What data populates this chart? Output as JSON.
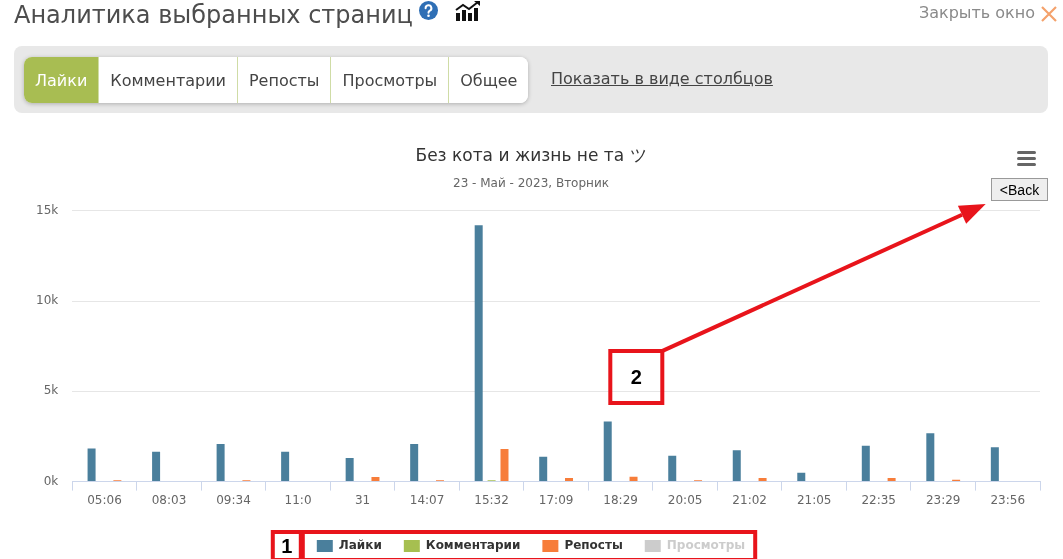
{
  "chart_data": {
    "type": "bar",
    "title": "Без кота и жизнь не та ツ",
    "subtitle": "23 - Май - 2023, Вторник",
    "categories": [
      "05:06",
      "08:03",
      "09:34",
      "11:0",
      "31",
      "14:07",
      "15:32",
      "17:09",
      "18:29",
      "20:05",
      "21:02",
      "21:05",
      "22:35",
      "23:29",
      "23:56"
    ],
    "series": [
      {
        "name": "Лайки",
        "color": "#4a7f9c",
        "values": [
          1830,
          1650,
          2080,
          1650,
          1310,
          2080,
          14200,
          1370,
          3330,
          1430,
          1730,
          490,
          1980,
          2680,
          1900
        ]
      },
      {
        "name": "Комментарии",
        "color": "#a6bf50",
        "values": [
          0,
          0,
          0,
          0,
          0,
          0,
          80,
          0,
          0,
          0,
          0,
          0,
          0,
          0,
          0
        ]
      },
      {
        "name": "Репосты",
        "color": "#f77d3a",
        "values": [
          80,
          0,
          80,
          0,
          250,
          80,
          1800,
          200,
          270,
          80,
          200,
          0,
          200,
          100,
          0
        ]
      },
      {
        "name": "Просмотры",
        "color": "#cccccc",
        "values": [
          null,
          null,
          null,
          null,
          null,
          null,
          null,
          null,
          null,
          null,
          null,
          null,
          null,
          null,
          null
        ]
      }
    ],
    "ylim": [
      0,
      15000
    ],
    "yticks": [
      {
        "value": 0,
        "label": "0k"
      },
      {
        "value": 5000,
        "label": "5k"
      },
      {
        "value": 10000,
        "label": "10k"
      },
      {
        "value": 15000,
        "label": "15k"
      }
    ],
    "grid": "y",
    "legend": "bottom",
    "annotations": [
      "Аналитика выбранных страниц",
      "Закрыть окно",
      "Лайки",
      "Комментарии",
      "Репосты",
      "Просмотры",
      "Общее",
      "Показать в виде столбцов",
      "<Back",
      "1",
      "2"
    ]
  }
}
